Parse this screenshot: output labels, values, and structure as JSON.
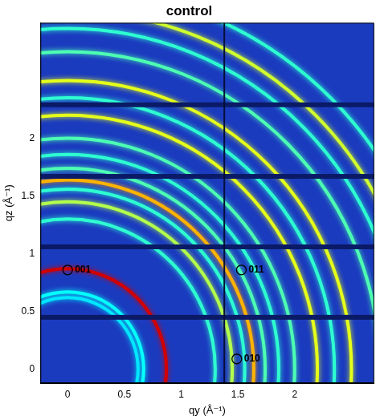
{
  "chart_data": {
    "type": "scattering_image",
    "title": "control",
    "x_label": "qy (Å⁻¹)",
    "y_label": "qz (Å⁻¹)",
    "xlim": [
      -0.24,
      2.7
    ],
    "ylim": [
      -0.12,
      3.0
    ],
    "xticks": [
      0,
      0.5,
      1,
      1.5,
      2
    ],
    "yticks": [
      0,
      0.5,
      1,
      1.5,
      2
    ],
    "grid": false,
    "marker": "circle",
    "rings": [
      {
        "q": 0.62,
        "intensity": 0.35
      },
      {
        "q": 0.67,
        "intensity": 0.38
      },
      {
        "q": 0.87,
        "intensity": 0.92
      },
      {
        "q": 1.3,
        "intensity": 0.42
      },
      {
        "q": 1.45,
        "intensity": 0.55
      },
      {
        "q": 1.56,
        "intensity": 0.42
      },
      {
        "q": 1.64,
        "intensity": 0.7
      },
      {
        "q": 1.74,
        "intensity": 0.45
      },
      {
        "q": 1.86,
        "intensity": 0.42
      },
      {
        "q": 2.0,
        "intensity": 0.45
      },
      {
        "q": 2.2,
        "intensity": 0.6
      },
      {
        "q": 2.35,
        "intensity": 0.42
      },
      {
        "q": 2.5,
        "intensity": 0.6
      },
      {
        "q": 2.75,
        "intensity": 0.45
      },
      {
        "q": 2.95,
        "intensity": 0.42
      },
      {
        "q": 3.1,
        "intensity": 0.58
      },
      {
        "q": 3.3,
        "intensity": 0.42
      }
    ],
    "detector_gaps": {
      "qz": [
        0.45,
        1.06,
        1.67,
        2.29
      ],
      "qy": [
        1.38
      ]
    },
    "annotations": [
      {
        "text": "001",
        "x": 0,
        "y": 0.86
      },
      {
        "text": "011",
        "x": 1.53,
        "y": 0.86
      },
      {
        "text": "010",
        "x": 1.49,
        "y": 0.09
      }
    ]
  }
}
